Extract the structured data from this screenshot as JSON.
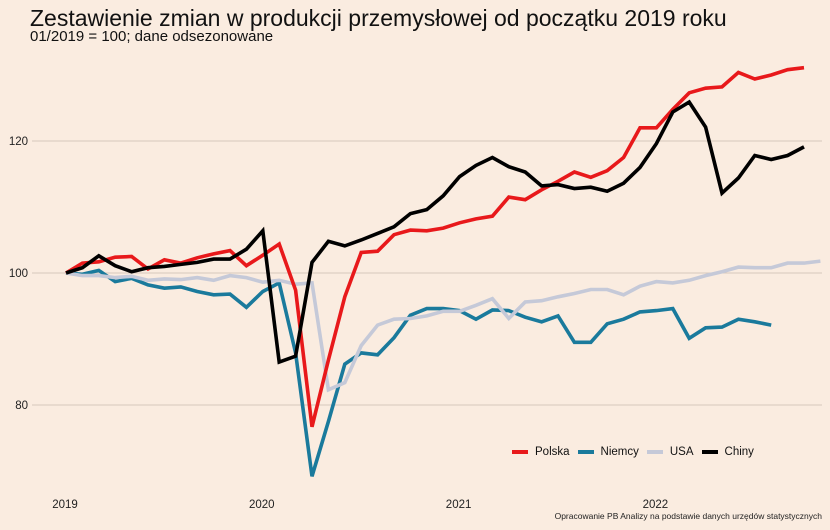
{
  "title": "Zestawienie zmian w produkcji przemysłowej od początku 2019 roku",
  "subtitle": "01/2019 = 100; dane odsezonowane",
  "caption": "Opracowanie PB Analizy na podstawie danych urzędów statystycznych",
  "chart_data": {
    "type": "line",
    "title": "Zestawienie zmian w produkcji przemysłowej od początku 2019 roku",
    "subtitle": "01/2019 = 100; dane odsezonowane",
    "xlabel": "",
    "ylabel": "",
    "x_start": "2019-01",
    "x_unit": "month",
    "xticks": [
      {
        "label": "2019",
        "month_index": 0
      },
      {
        "label": "2020",
        "month_index": 12
      },
      {
        "label": "2021",
        "month_index": 24
      },
      {
        "label": "2022",
        "month_index": 36
      }
    ],
    "yticks": [
      80,
      100,
      120
    ],
    "ylim": [
      67,
      134
    ],
    "grid": "horizontal",
    "legend_position": "bottom-right",
    "series": [
      {
        "name": "Polska",
        "color": "#e8191b",
        "values": [
          100.0,
          101.5,
          101.7,
          102.4,
          102.5,
          100.6,
          102.0,
          101.5,
          102.3,
          102.9,
          103.4,
          101.1,
          102.7,
          104.4,
          97.4,
          76.7,
          86.8,
          96.4,
          103.1,
          103.3,
          105.8,
          106.5,
          106.4,
          106.8,
          107.6,
          108.2,
          108.6,
          111.5,
          111.1,
          112.6,
          113.9,
          115.3,
          114.5,
          115.5,
          117.5,
          122.0,
          122.0,
          124.8,
          127.3,
          128.0,
          128.2,
          130.4,
          129.4,
          130.0,
          130.8,
          131.1
        ]
      },
      {
        "name": "Niemcy",
        "color": "#1a7a9c",
        "values": [
          100.0,
          99.8,
          100.4,
          98.7,
          99.2,
          98.2,
          97.7,
          97.9,
          97.2,
          96.7,
          96.8,
          94.8,
          97.2,
          98.5,
          87.9,
          69.2,
          77.5,
          86.2,
          87.9,
          87.6,
          90.2,
          93.6,
          94.6,
          94.6,
          94.3,
          93.0,
          94.4,
          94.3,
          93.3,
          92.6,
          93.5,
          89.5,
          89.5,
          92.3,
          93.0,
          94.1,
          94.3,
          94.6,
          90.1,
          91.7,
          91.8,
          93.0,
          92.6,
          92.1
        ]
      },
      {
        "name": "USA",
        "color": "#c5c9d8",
        "values": [
          100.0,
          99.6,
          99.6,
          99.3,
          99.5,
          98.9,
          99.1,
          99.0,
          99.3,
          98.9,
          99.6,
          99.3,
          98.6,
          98.9,
          98.3,
          98.5,
          82.3,
          83.4,
          89.0,
          92.1,
          93.0,
          93.1,
          93.5,
          94.2,
          94.2,
          95.1,
          96.1,
          93.1,
          95.6,
          95.8,
          96.4,
          96.9,
          97.5,
          97.5,
          96.7,
          98.0,
          98.7,
          98.5,
          98.9,
          99.6,
          100.2,
          100.9,
          100.8,
          100.8,
          101.5,
          101.5,
          101.8
        ]
      },
      {
        "name": "Chiny",
        "color": "#000000",
        "values": [
          100.0,
          100.8,
          102.6,
          101.1,
          100.2,
          100.8,
          101.0,
          101.3,
          101.6,
          102.1,
          102.1,
          103.6,
          106.4,
          86.5,
          87.4,
          101.6,
          104.8,
          104.1,
          105.0,
          106.0,
          107.0,
          109.0,
          109.6,
          111.7,
          114.6,
          116.3,
          117.5,
          116.1,
          115.3,
          113.2,
          113.4,
          112.8,
          113.0,
          112.4,
          113.6,
          116.0,
          119.6,
          124.4,
          125.9,
          122.1,
          112.1,
          114.4,
          117.8,
          117.2,
          117.8,
          119.1
        ]
      }
    ]
  }
}
